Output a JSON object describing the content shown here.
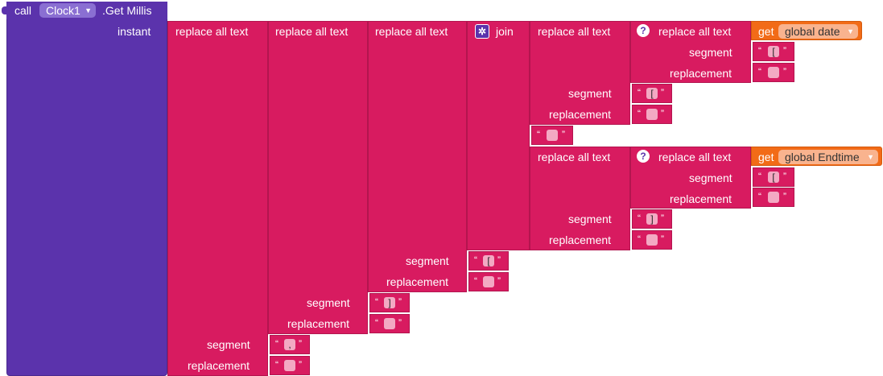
{
  "call_block": {
    "call_label": "call",
    "component": "Clock1",
    "method": ".Get Millis",
    "param_label": "instant"
  },
  "replace_label": "replace all text",
  "join_label": "join",
  "segment_label": "segment",
  "replacement_label": "replacement",
  "get_label": "get",
  "vars": {
    "date": "global date",
    "endtime": "global Endtime"
  },
  "strings": {
    "open_bracket": "[",
    "close_bracket": "]",
    "comma": ",",
    "empty": ""
  },
  "colors": {
    "purple": "#5b33ac",
    "pink": "#d81b60",
    "orange": "#f26b17"
  }
}
